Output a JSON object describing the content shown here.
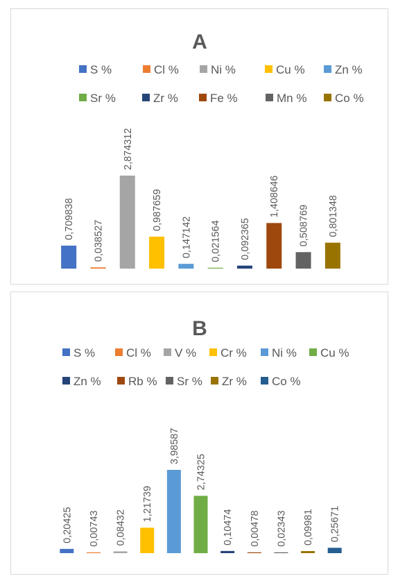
{
  "chart_data": [
    {
      "type": "bar",
      "title": "A",
      "legend_position": "top",
      "grid": false,
      "ylim": [
        0,
        3.2
      ],
      "categories": [
        "S %",
        "Cl %",
        "Ni %",
        "Cu %",
        "Zn %",
        "Sr %",
        "Zr %",
        "Fe %",
        "Mn %",
        "Co %"
      ],
      "values": [
        0.709838,
        0.038527,
        2.874312,
        0.987659,
        0.147142,
        0.021564,
        0.092365,
        1.408646,
        0.508769,
        0.801348
      ],
      "labels": [
        "0,709838",
        "0,038527",
        "2,874312",
        "0,987659",
        "0,147142",
        "0,021564",
        "0,092365",
        "1,408646",
        "0,508769",
        "0,801348"
      ],
      "colors": [
        "#4472C4",
        "#ED7D31",
        "#A5A5A5",
        "#FFC000",
        "#5B9BD5",
        "#70AD47",
        "#264478",
        "#9E480E",
        "#636363",
        "#997300"
      ]
    },
    {
      "type": "bar",
      "title": "B",
      "legend_position": "top",
      "grid": false,
      "ylim": [
        0,
        4.7
      ],
      "categories": [
        "S %",
        "Cl %",
        "V %",
        "Cr %",
        "Ni %",
        "Cu %",
        "Zn %",
        "Rb %",
        "Sr %",
        "Zr %",
        "Co %"
      ],
      "values": [
        0.20425,
        0.00743,
        0.08432,
        1.21739,
        3.98587,
        2.74325,
        0.10474,
        0.00478,
        0.02343,
        0.09981,
        0.25671
      ],
      "labels": [
        "0,20425",
        "0,00743",
        "0,08432",
        "1,21739",
        "3,98587",
        "2,74325",
        "0,10474",
        "0,00478",
        "0,02343",
        "0,09981",
        "0,25671"
      ],
      "colors": [
        "#4472C4",
        "#ED7D31",
        "#A5A5A5",
        "#FFC000",
        "#5B9BD5",
        "#70AD47",
        "#264478",
        "#9E480E",
        "#636363",
        "#997300",
        "#255E91"
      ]
    }
  ]
}
